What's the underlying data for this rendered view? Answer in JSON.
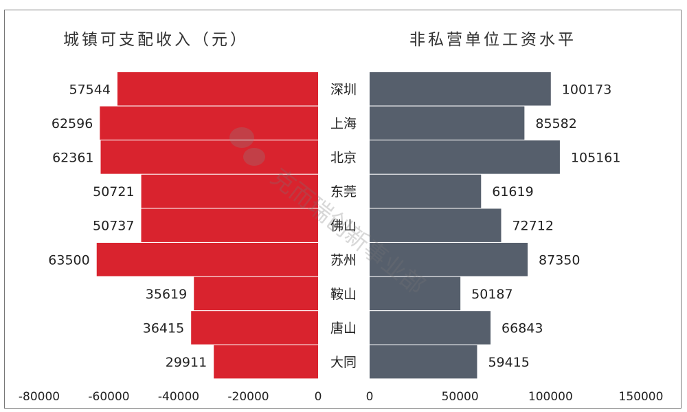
{
  "chart_data": [
    {
      "type": "bar",
      "orientation": "horizontal",
      "title": "城镇可支配收入（元）",
      "categories": [
        "深圳",
        "上海",
        "北京",
        "东莞",
        "佛山",
        "苏州",
        "鞍山",
        "唐山",
        "大同"
      ],
      "values": [
        57544,
        62596,
        62361,
        50721,
        50737,
        63500,
        35619,
        36415,
        29911
      ],
      "xlim": [
        -80000,
        0
      ],
      "ticks": [
        "-80000",
        "-60000",
        "-40000",
        "-20000",
        "0"
      ],
      "color": "#d9232e"
    },
    {
      "type": "bar",
      "orientation": "horizontal",
      "title": "非私营单位工资水平",
      "categories": [
        "深圳",
        "上海",
        "北京",
        "东莞",
        "佛山",
        "苏州",
        "鞍山",
        "唐山",
        "大同"
      ],
      "values": [
        100173,
        85582,
        105161,
        61619,
        72712,
        87350,
        50187,
        66843,
        59415
      ],
      "xlim": [
        0,
        150000
      ],
      "ticks": [
        "0",
        "50000",
        "100000",
        "150000"
      ],
      "color": "#565f6c"
    }
  ],
  "watermark": "克而瑞创新事业部"
}
